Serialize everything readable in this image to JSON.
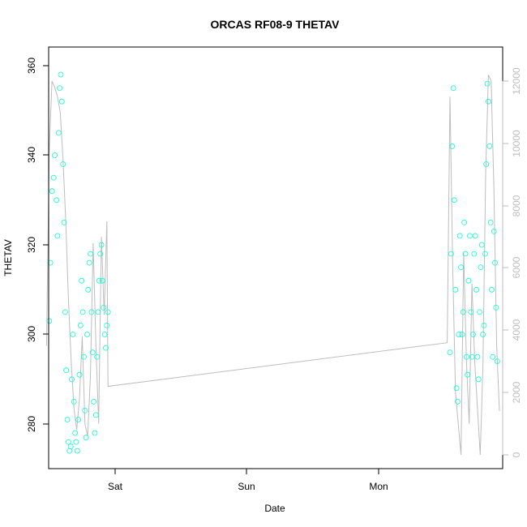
{
  "chart_data": {
    "type": "scatter",
    "title": "ORCAS RF08-9 THETAV",
    "xlabel": "Date",
    "ylabel": "THETAV",
    "x_ticks": [
      "Sat",
      "Sun",
      "Mon"
    ],
    "y_ticks": [
      280,
      300,
      320,
      340,
      360
    ],
    "y_right_ticks": [
      0,
      2000,
      4000,
      6000,
      8000,
      10000,
      12000
    ],
    "ylim": [
      272,
      362
    ],
    "y_right_lim": [
      -300,
      12600
    ],
    "grid": false,
    "legend": "none",
    "colors": {
      "points": "#00ffd0",
      "altitude_line": "#bdbdbd",
      "axis": "#000000",
      "right_axis": "#bdbdbd"
    },
    "series": [
      {
        "values_hours": [
          -12.0,
          -11.8,
          -11.5,
          -11.2,
          -11.0,
          -10.7,
          -10.5,
          -10.3,
          -10.1,
          -9.9,
          -9.7,
          -9.5,
          -9.3,
          -9.1,
          -8.9,
          -8.7,
          -8.5,
          -8.3,
          -8.1,
          -7.9,
          -7.7,
          -7.5,
          -7.3,
          -7.1,
          -6.9,
          -6.7,
          -6.5,
          -6.3,
          -6.1,
          -5.9,
          -5.7,
          -5.5,
          -5.3,
          -5.1,
          -4.9,
          -4.7,
          -4.5,
          -4.3,
          -4.1,
          -3.9,
          -3.7,
          -3.5,
          -3.3,
          -3.1,
          -2.9,
          -2.7,
          -2.5,
          -2.3,
          -2.1,
          -1.9,
          -1.7,
          -1.5,
          -1.3
        ],
        "values": [
          303,
          316,
          332,
          335,
          340,
          330,
          322,
          345,
          355,
          358,
          352,
          338,
          325,
          305,
          292,
          281,
          276,
          274,
          275,
          290,
          300,
          285,
          278,
          276,
          274,
          281,
          291,
          302,
          312,
          305,
          295,
          283,
          277,
          300,
          310,
          316,
          318,
          305,
          296,
          285,
          278,
          282,
          295,
          305,
          312,
          318,
          320,
          312,
          306,
          300,
          297,
          302,
          305
        ]
      },
      {
        "values_hours": [
          61.0,
          61.2,
          61.4,
          61.6,
          61.8,
          62.0,
          62.2,
          62.4,
          62.6,
          62.8,
          63.0,
          63.2,
          63.4,
          63.6,
          63.8,
          64.0,
          64.2,
          64.4,
          64.6,
          64.8,
          65.0,
          65.2,
          65.4,
          65.6,
          65.8,
          66.0,
          66.2,
          66.4,
          66.6,
          66.8,
          67.0,
          67.2,
          67.4,
          67.6,
          67.8,
          68.0,
          68.2,
          68.4,
          68.6,
          68.8,
          69.0,
          69.2,
          69.4,
          69.6
        ],
        "values": [
          296,
          318,
          342,
          355,
          330,
          310,
          288,
          285,
          300,
          322,
          315,
          300,
          305,
          325,
          318,
          295,
          291,
          312,
          322,
          305,
          295,
          300,
          318,
          322,
          310,
          295,
          290,
          305,
          315,
          320,
          300,
          302,
          318,
          338,
          356,
          352,
          342,
          325,
          310,
          295,
          323,
          316,
          306,
          294
        ]
      },
      {
        "values_hours": [
          -12.5,
          -12.0,
          -11.5,
          -11.0,
          -10.5,
          -10.0,
          -9.5,
          -9.0,
          -8.5,
          -8.0,
          -7.5,
          -7.0,
          -6.5,
          -6.0,
          -5.5,
          -5.0,
          -4.5,
          -4.0,
          -3.5,
          -3.0,
          -2.5,
          -2.0,
          -1.5,
          -1.3,
          60.5,
          61.0,
          61.5,
          62.0,
          62.5,
          63.0,
          63.5,
          64.0,
          64.5,
          65.0,
          65.5,
          66.0,
          66.5,
          67.0,
          67.5,
          68.0,
          68.5,
          69.0,
          69.5,
          70.0
        ],
        "values": [
          3500,
          9800,
          12000,
          11800,
          11500,
          11000,
          9500,
          7500,
          5000,
          3000,
          1500,
          800,
          1800,
          3800,
          1000,
          600,
          2500,
          6800,
          3500,
          1000,
          7000,
          4500,
          7500,
          2200,
          3600,
          11500,
          6000,
          2000,
          1000,
          0,
          6500,
          3000,
          1000,
          5500,
          3000,
          1500,
          0,
          2800,
          9000,
          12200,
          12000,
          8500,
          3500,
          1400
        ]
      }
    ]
  }
}
